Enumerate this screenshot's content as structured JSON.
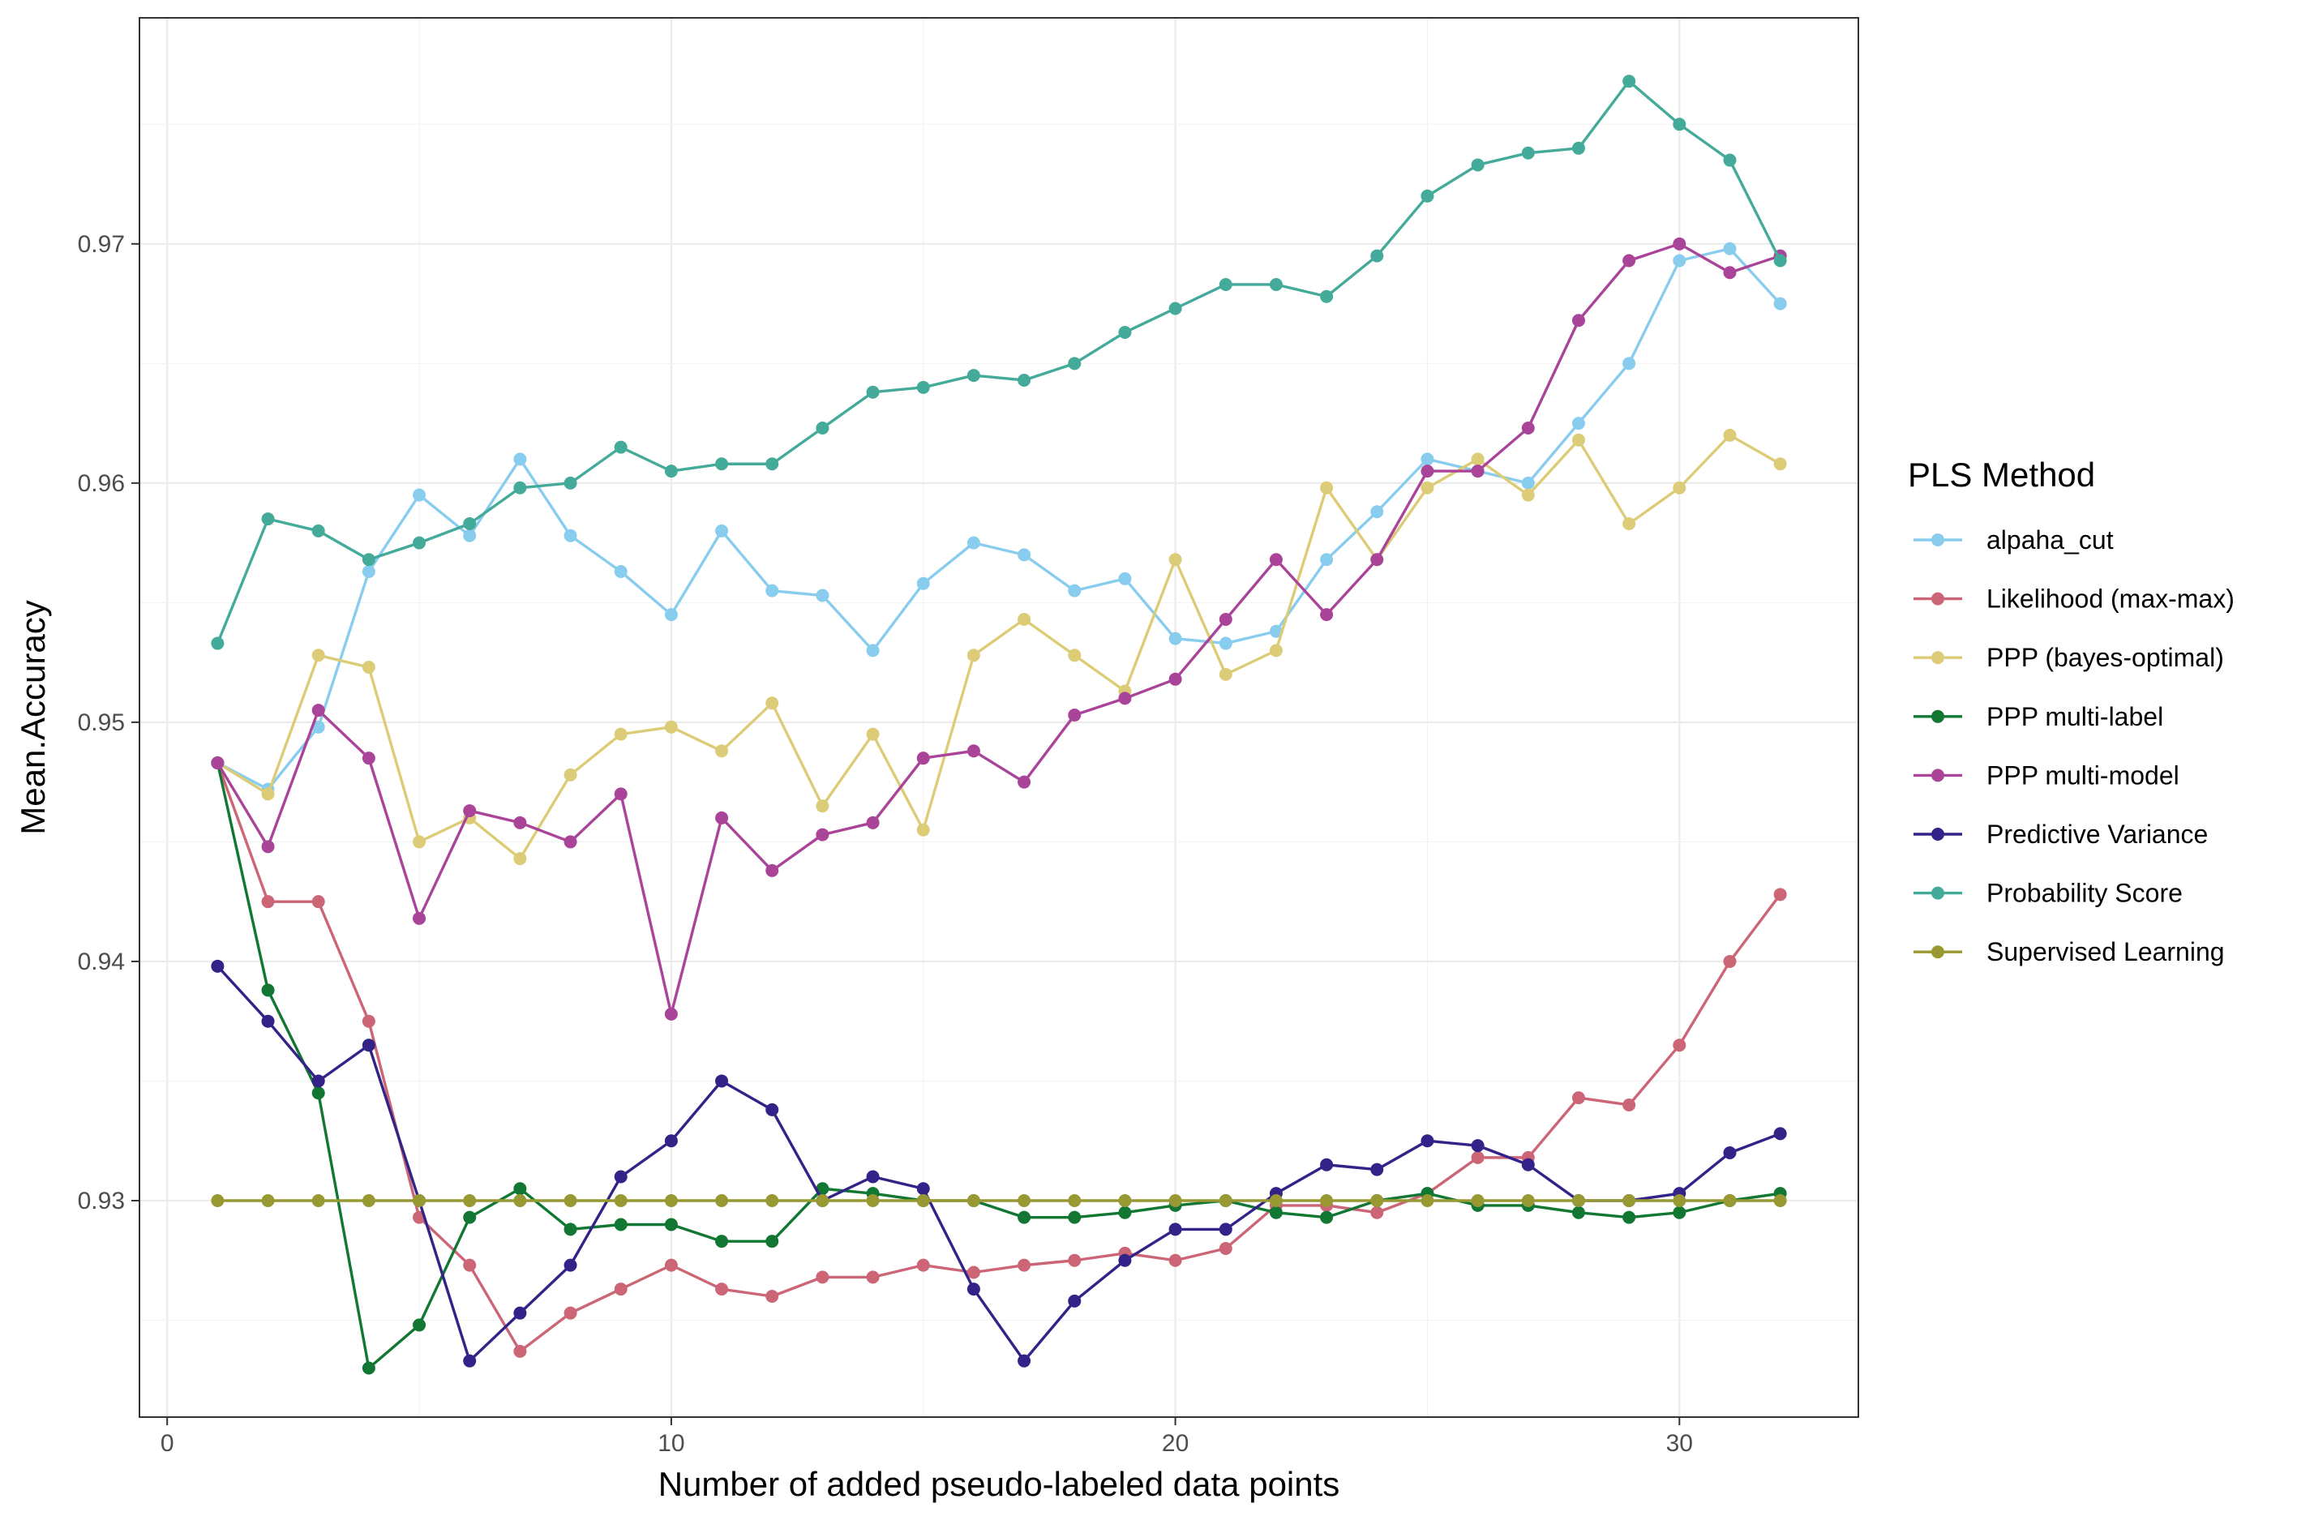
{
  "chart_data": {
    "type": "line",
    "xlabel": "Number of added pseudo-labeled data points",
    "ylabel": "Mean.Accuracy",
    "xlim": [
      -0.55,
      33.55
    ],
    "ylim": [
      0.92095,
      0.97945
    ],
    "x_ticks": [
      0,
      10,
      20,
      30
    ],
    "x_tick_labels": [
      "0",
      "10",
      "20",
      "30"
    ],
    "y_ticks": [
      0.93,
      0.94,
      0.95,
      0.96,
      0.97
    ],
    "y_tick_labels": [
      "0.93",
      "0.94",
      "0.95",
      "0.96",
      "0.97"
    ],
    "grid": true,
    "legend": {
      "title": "PLS Method",
      "position": "right"
    },
    "x": [
      1,
      2,
      3,
      4,
      5,
      6,
      7,
      8,
      9,
      10,
      11,
      12,
      13,
      14,
      15,
      16,
      17,
      18,
      19,
      20,
      21,
      22,
      23,
      24,
      25,
      26,
      27,
      28,
      29,
      30,
      31,
      32
    ],
    "series": [
      {
        "name": "alpaha_cut",
        "color": "#88CCEE",
        "values": [
          0.9483,
          0.9472,
          0.9498,
          0.9563,
          0.9595,
          0.9578,
          0.961,
          0.9578,
          0.9563,
          0.9545,
          0.958,
          0.9555,
          0.9553,
          0.953,
          0.9558,
          0.9575,
          0.957,
          0.9555,
          0.956,
          0.9535,
          0.9533,
          0.9538,
          0.9568,
          0.9588,
          0.961,
          0.9605,
          0.96,
          0.9625,
          0.965,
          0.9693,
          0.9698,
          0.9675
        ]
      },
      {
        "name": "Likelihood (max-max)",
        "color": "#CC6677",
        "values": [
          0.9483,
          0.9425,
          0.9425,
          0.9375,
          0.9293,
          0.9273,
          0.9237,
          0.9253,
          0.9263,
          0.9273,
          0.9263,
          0.926,
          0.9268,
          0.9268,
          0.9273,
          0.927,
          0.9273,
          0.9275,
          0.9278,
          0.9275,
          0.928,
          0.9298,
          0.9298,
          0.9295,
          0.9303,
          0.9318,
          0.9318,
          0.9343,
          0.934,
          0.9365,
          0.94,
          0.9428
        ]
      },
      {
        "name": "PPP (bayes-optimal)",
        "color": "#DDCC77",
        "values": [
          0.9483,
          0.947,
          0.9528,
          0.9523,
          0.945,
          0.946,
          0.9443,
          0.9478,
          0.9495,
          0.9498,
          0.9488,
          0.9508,
          0.9465,
          0.9495,
          0.9455,
          0.9528,
          0.9543,
          0.9528,
          0.9513,
          0.9568,
          0.952,
          0.953,
          0.9598,
          0.9568,
          0.9598,
          0.961,
          0.9595,
          0.9618,
          0.9583,
          0.9598,
          0.962,
          0.9608
        ]
      },
      {
        "name": "PPP multi-label",
        "color": "#117733",
        "values": [
          0.9483,
          0.9388,
          0.9345,
          0.923,
          0.9248,
          0.9293,
          0.9305,
          0.9288,
          0.929,
          0.929,
          0.9283,
          0.9283,
          0.9305,
          0.9303,
          0.93,
          0.93,
          0.9293,
          0.9293,
          0.9295,
          0.9298,
          0.93,
          0.9295,
          0.9293,
          0.93,
          0.9303,
          0.9298,
          0.9298,
          0.9295,
          0.9293,
          0.9295,
          0.93,
          0.9303
        ]
      },
      {
        "name": "PPP multi-model",
        "color": "#AA4499",
        "values": [
          0.9483,
          0.9448,
          0.9505,
          0.9485,
          0.9418,
          0.9463,
          0.9458,
          0.945,
          0.947,
          0.9378,
          0.946,
          0.9438,
          0.9453,
          0.9458,
          0.9485,
          0.9488,
          0.9475,
          0.9503,
          0.951,
          0.9518,
          0.9543,
          0.9568,
          0.9545,
          0.9568,
          0.9605,
          0.9605,
          0.9623,
          0.9668,
          0.9693,
          0.97,
          0.9688,
          0.9695
        ]
      },
      {
        "name": "Predictive Variance",
        "color": "#332288",
        "values": [
          0.9398,
          0.9375,
          0.935,
          0.9365,
          0.93,
          0.9233,
          0.9253,
          0.9273,
          0.931,
          0.9325,
          0.935,
          0.9338,
          0.93,
          0.931,
          0.9305,
          0.9263,
          0.9233,
          0.9258,
          0.9275,
          0.9288,
          0.9288,
          0.9303,
          0.9315,
          0.9313,
          0.9325,
          0.9323,
          0.9315,
          0.93,
          0.93,
          0.9303,
          0.932,
          0.9328
        ]
      },
      {
        "name": "Probability Score",
        "color": "#44AA99",
        "values": [
          0.9533,
          0.9585,
          0.958,
          0.9568,
          0.9575,
          0.9583,
          0.9598,
          0.96,
          0.9615,
          0.9605,
          0.9608,
          0.9608,
          0.9623,
          0.9638,
          0.964,
          0.9645,
          0.9643,
          0.965,
          0.9663,
          0.9673,
          0.9683,
          0.9683,
          0.9678,
          0.9695,
          0.972,
          0.9733,
          0.9738,
          0.974,
          0.9768,
          0.975,
          0.9735,
          0.9693
        ]
      },
      {
        "name": "Supervised Learning",
        "color": "#999933",
        "values": [
          0.93,
          0.93,
          0.93,
          0.93,
          0.93,
          0.93,
          0.93,
          0.93,
          0.93,
          0.93,
          0.93,
          0.93,
          0.93,
          0.93,
          0.93,
          0.93,
          0.93,
          0.93,
          0.93,
          0.93,
          0.93,
          0.93,
          0.93,
          0.93,
          0.93,
          0.93,
          0.93,
          0.93,
          0.93,
          0.93,
          0.93,
          0.93
        ]
      }
    ]
  }
}
